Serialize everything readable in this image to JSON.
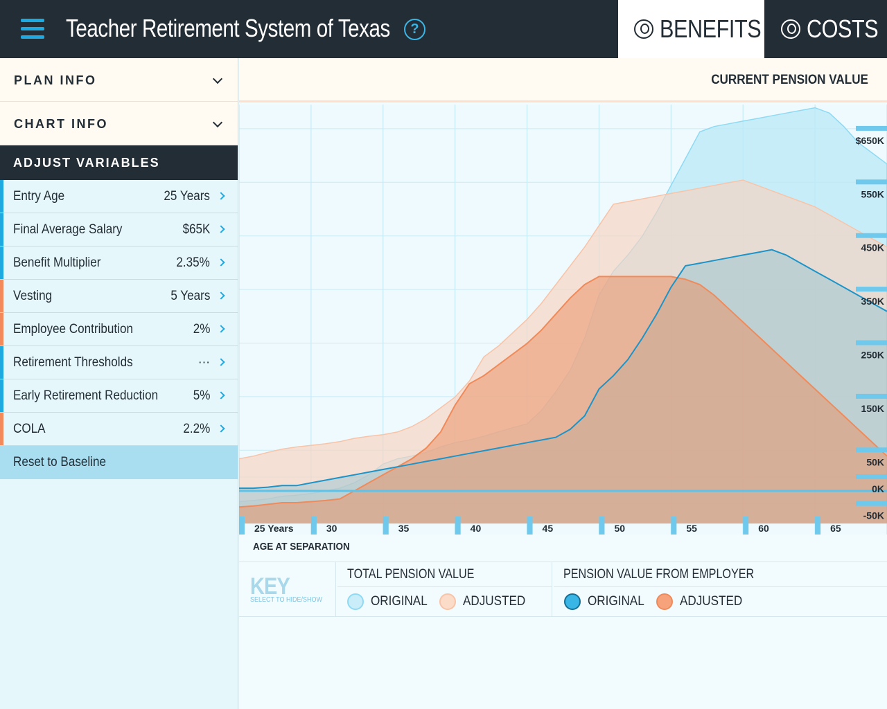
{
  "header": {
    "title": "Teacher Retirement System of Texas",
    "help_label": "?",
    "tabs": [
      {
        "label": "BENEFITS",
        "active": true
      },
      {
        "label": "COSTS",
        "active": false
      }
    ]
  },
  "sidebar": {
    "plan_info": "PLAN INFO",
    "chart_info": "CHART INFO",
    "adjust_header": "ADJUST VARIABLES",
    "variables": [
      {
        "label": "Entry Age",
        "value": "25 Years",
        "accent": "#1ea9e1"
      },
      {
        "label": "Final Average Salary",
        "value": "$65K",
        "accent": "#1ea9e1"
      },
      {
        "label": "Benefit Multiplier",
        "value": "2.35%",
        "accent": "#1ea9e1"
      },
      {
        "label": "Vesting",
        "value": "5 Years",
        "accent": "#f28a5b"
      },
      {
        "label": "Employee Contribution",
        "value": "2%",
        "accent": "#f28a5b"
      },
      {
        "label": "Retirement Thresholds",
        "value": "···",
        "accent": "#1ea9e1"
      },
      {
        "label": "Early Retirement Reduction",
        "value": "5%",
        "accent": "#1ea9e1"
      },
      {
        "label": "COLA",
        "value": "2.2%",
        "accent": "#f28a5b"
      }
    ],
    "reset_label": "Reset to Baseline"
  },
  "chart_data": {
    "type": "area",
    "title": "CURRENT PENSION VALUE",
    "xlabel": "AGE AT SEPARATION",
    "ylabel": "",
    "x_tick_labels": [
      "25 Years",
      "30",
      "35",
      "40",
      "45",
      "50",
      "55",
      "60",
      "65"
    ],
    "y_tick_labels": [
      "$650K",
      "550K",
      "450K",
      "350K",
      "250K",
      "150K",
      "50K",
      "0K",
      "-50K"
    ],
    "xlim": [
      25,
      70
    ],
    "ylim": [
      -50,
      700
    ],
    "x": [
      25,
      26,
      27,
      28,
      29,
      30,
      31,
      32,
      33,
      34,
      35,
      36,
      37,
      38,
      39,
      40,
      41,
      42,
      43,
      44,
      45,
      46,
      47,
      48,
      49,
      50,
      51,
      52,
      53,
      54,
      55,
      56,
      57,
      58,
      59,
      60,
      61,
      62,
      63,
      64,
      65,
      66,
      67,
      68,
      69,
      70
    ],
    "series": [
      {
        "name": "TOTAL PENSION VALUE — ORIGINAL",
        "color": "#8fdaf3",
        "values": [
          -20,
          -18,
          -15,
          -10,
          -8,
          -5,
          0,
          5,
          15,
          30,
          50,
          60,
          65,
          72,
          82,
          90,
          95,
          102,
          110,
          118,
          125,
          150,
          185,
          225,
          285,
          365,
          410,
          440,
          475,
          520,
          570,
          620,
          670,
          680,
          685,
          690,
          695,
          700,
          705,
          710,
          715,
          705,
          680,
          650,
          630,
          610
        ]
      },
      {
        "name": "TOTAL PENSION VALUE — ADJUSTED",
        "color": "#f8c3a7",
        "values": [
          60,
          65,
          72,
          78,
          82,
          85,
          88,
          92,
          98,
          102,
          105,
          110,
          120,
          135,
          155,
          175,
          205,
          250,
          270,
          295,
          320,
          350,
          385,
          420,
          455,
          495,
          535,
          540,
          545,
          550,
          555,
          560,
          565,
          570,
          575,
          580,
          570,
          560,
          550,
          540,
          530,
          515,
          500,
          485,
          470,
          455
        ]
      },
      {
        "name": "PENSION VALUE FROM EMPLOYER — ORIGINAL",
        "color": "#1c94c9",
        "values": [
          5,
          5,
          7,
          10,
          10,
          15,
          20,
          25,
          30,
          35,
          40,
          45,
          50,
          55,
          60,
          65,
          70,
          75,
          80,
          85,
          90,
          95,
          100,
          115,
          140,
          190,
          215,
          245,
          285,
          330,
          380,
          420,
          425,
          430,
          435,
          440,
          445,
          450,
          440,
          425,
          410,
          395,
          380,
          365,
          350,
          335
        ]
      },
      {
        "name": "PENSION VALUE FROM EMPLOYER — ADJUSTED",
        "color": "#ef8b5b",
        "values": [
          -30,
          -28,
          -25,
          -22,
          -22,
          -20,
          -18,
          -15,
          0,
          15,
          30,
          45,
          60,
          80,
          110,
          160,
          200,
          215,
          235,
          255,
          275,
          300,
          330,
          360,
          385,
          400,
          400,
          400,
          400,
          400,
          400,
          395,
          385,
          365,
          340,
          315,
          290,
          265,
          240,
          215,
          190,
          165,
          140,
          115,
          90,
          65
        ]
      }
    ],
    "grid": true
  },
  "key": {
    "title": "KEY",
    "subtitle": "SELECT TO HIDE/SHOW",
    "groups": [
      {
        "title": "TOTAL PENSION VALUE",
        "items": [
          {
            "label": "ORIGINAL",
            "fill": "#c9eef9",
            "stroke": "#8fdaf3"
          },
          {
            "label": "ADJUSTED",
            "fill": "#fbdcc9",
            "stroke": "#f8c3a7"
          }
        ]
      },
      {
        "title": "PENSION VALUE FROM EMPLOYER",
        "items": [
          {
            "label": "ORIGINAL",
            "fill": "#39b5e6",
            "stroke": "#176f94"
          },
          {
            "label": "ADJUSTED",
            "fill": "#f6a37c",
            "stroke": "#ef8b5b"
          }
        ]
      }
    ]
  }
}
